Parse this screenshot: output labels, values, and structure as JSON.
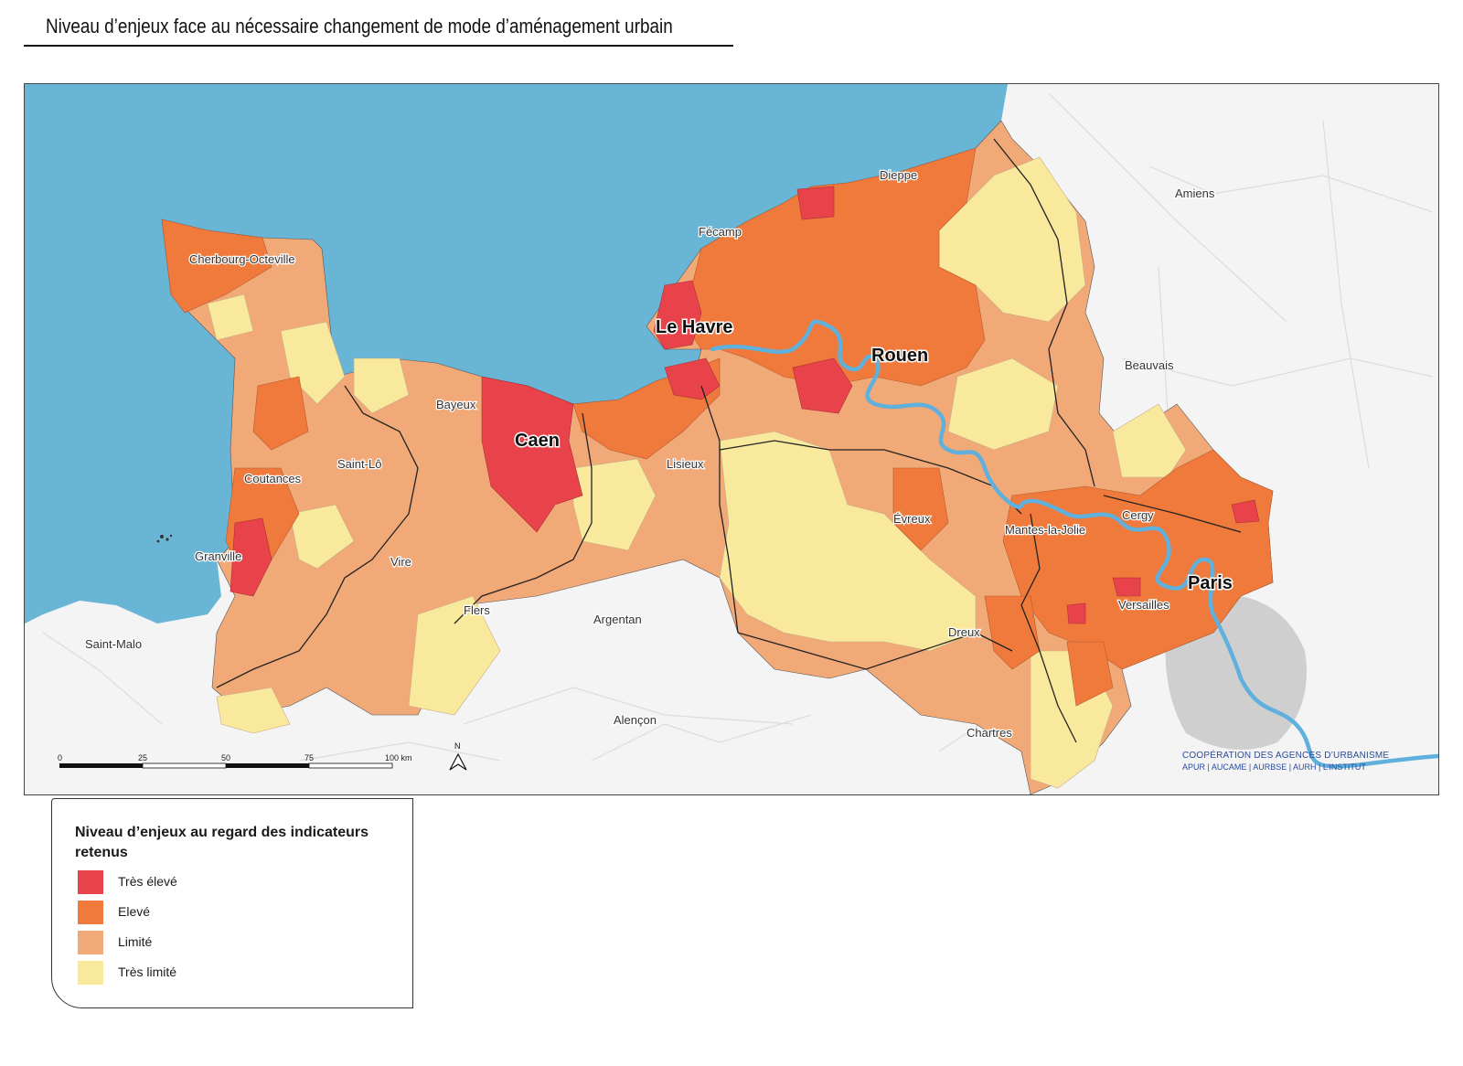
{
  "title": "Niveau d’enjeux face au nécessaire changement de mode d’aménagement urbain",
  "colors": {
    "sea": "#69b5d6",
    "very_high": "#e8434a",
    "high": "#ef7a3c",
    "limited": "#f2a978",
    "very_limited": "#f9e99c",
    "background": "#f4f4f4",
    "river": "#5fb0dc",
    "urban": "#c9c9c9"
  },
  "places": {
    "le_havre": "Le Havre",
    "rouen": "Rouen",
    "caen": "Caen",
    "paris": "Paris",
    "cherbourg": "Cherbourg-Octeville",
    "dieppe": "Dieppe",
    "fecamp": "Fécamp",
    "amiens": "Amiens",
    "beauvais": "Beauvais",
    "bayeux": "Bayeux",
    "saint_lo": "Saint-Lô",
    "lisieux": "Lisieux",
    "coutances": "Coutances",
    "granville": "Granville",
    "vire": "Vire",
    "flers": "Flers",
    "argentan": "Argentan",
    "evreux": "Évreux",
    "mantes": "Mantes-la-Jolie",
    "cergy": "Cergy",
    "versailles": "Versailles",
    "dreux": "Dreux",
    "chartres": "Chartres",
    "alencon": "Alençon",
    "saint_malo": "Saint-Malo"
  },
  "scale_bar": {
    "ticks": [
      "0",
      "25",
      "50",
      "75",
      "100 km"
    ],
    "north": "N"
  },
  "credit": {
    "line1": "COOPÉRATION DES AGENCES D’URBANISME",
    "line2": "APUR | AUCAME | AURBSE | AURH | L’INSTITUT"
  },
  "legend": {
    "title": "Niveau d’enjeux au regard des indicateurs retenus",
    "items": [
      {
        "label": "Très élevé",
        "color": "#e8434a"
      },
      {
        "label": "Elevé",
        "color": "#ef7a3c"
      },
      {
        "label": "Limité",
        "color": "#f2a978"
      },
      {
        "label": "Très limité",
        "color": "#f9e99c"
      }
    ]
  }
}
